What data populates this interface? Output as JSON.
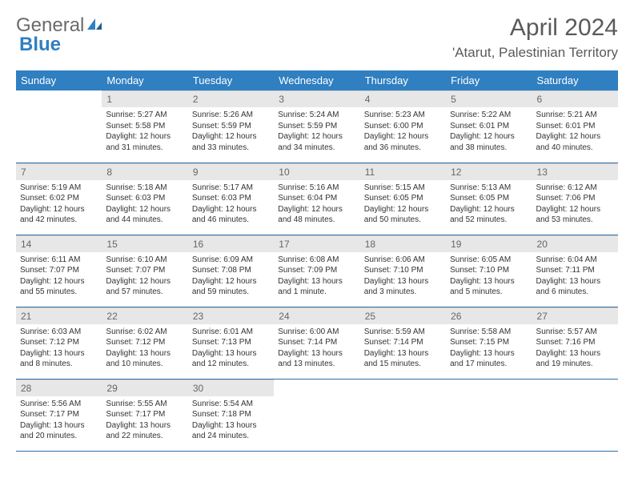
{
  "brand": {
    "part1": "General",
    "part2": "Blue"
  },
  "title": "April 2024",
  "location": "'Atarut, Palestinian Territory",
  "colors": {
    "header_bg": "#2f7fc1",
    "header_text": "#ffffff",
    "daynum_bg": "#e7e7e7",
    "border": "#2f6fa8"
  },
  "weekdays": [
    "Sunday",
    "Monday",
    "Tuesday",
    "Wednesday",
    "Thursday",
    "Friday",
    "Saturday"
  ],
  "weeks": [
    [
      {
        "n": "",
        "sr": "",
        "ss": "",
        "dl": ""
      },
      {
        "n": "1",
        "sr": "Sunrise: 5:27 AM",
        "ss": "Sunset: 5:58 PM",
        "dl": "Daylight: 12 hours and 31 minutes."
      },
      {
        "n": "2",
        "sr": "Sunrise: 5:26 AM",
        "ss": "Sunset: 5:59 PM",
        "dl": "Daylight: 12 hours and 33 minutes."
      },
      {
        "n": "3",
        "sr": "Sunrise: 5:24 AM",
        "ss": "Sunset: 5:59 PM",
        "dl": "Daylight: 12 hours and 34 minutes."
      },
      {
        "n": "4",
        "sr": "Sunrise: 5:23 AM",
        "ss": "Sunset: 6:00 PM",
        "dl": "Daylight: 12 hours and 36 minutes."
      },
      {
        "n": "5",
        "sr": "Sunrise: 5:22 AM",
        "ss": "Sunset: 6:01 PM",
        "dl": "Daylight: 12 hours and 38 minutes."
      },
      {
        "n": "6",
        "sr": "Sunrise: 5:21 AM",
        "ss": "Sunset: 6:01 PM",
        "dl": "Daylight: 12 hours and 40 minutes."
      }
    ],
    [
      {
        "n": "7",
        "sr": "Sunrise: 5:19 AM",
        "ss": "Sunset: 6:02 PM",
        "dl": "Daylight: 12 hours and 42 minutes."
      },
      {
        "n": "8",
        "sr": "Sunrise: 5:18 AM",
        "ss": "Sunset: 6:03 PM",
        "dl": "Daylight: 12 hours and 44 minutes."
      },
      {
        "n": "9",
        "sr": "Sunrise: 5:17 AM",
        "ss": "Sunset: 6:03 PM",
        "dl": "Daylight: 12 hours and 46 minutes."
      },
      {
        "n": "10",
        "sr": "Sunrise: 5:16 AM",
        "ss": "Sunset: 6:04 PM",
        "dl": "Daylight: 12 hours and 48 minutes."
      },
      {
        "n": "11",
        "sr": "Sunrise: 5:15 AM",
        "ss": "Sunset: 6:05 PM",
        "dl": "Daylight: 12 hours and 50 minutes."
      },
      {
        "n": "12",
        "sr": "Sunrise: 5:13 AM",
        "ss": "Sunset: 6:05 PM",
        "dl": "Daylight: 12 hours and 52 minutes."
      },
      {
        "n": "13",
        "sr": "Sunrise: 6:12 AM",
        "ss": "Sunset: 7:06 PM",
        "dl": "Daylight: 12 hours and 53 minutes."
      }
    ],
    [
      {
        "n": "14",
        "sr": "Sunrise: 6:11 AM",
        "ss": "Sunset: 7:07 PM",
        "dl": "Daylight: 12 hours and 55 minutes."
      },
      {
        "n": "15",
        "sr": "Sunrise: 6:10 AM",
        "ss": "Sunset: 7:07 PM",
        "dl": "Daylight: 12 hours and 57 minutes."
      },
      {
        "n": "16",
        "sr": "Sunrise: 6:09 AM",
        "ss": "Sunset: 7:08 PM",
        "dl": "Daylight: 12 hours and 59 minutes."
      },
      {
        "n": "17",
        "sr": "Sunrise: 6:08 AM",
        "ss": "Sunset: 7:09 PM",
        "dl": "Daylight: 13 hours and 1 minute."
      },
      {
        "n": "18",
        "sr": "Sunrise: 6:06 AM",
        "ss": "Sunset: 7:10 PM",
        "dl": "Daylight: 13 hours and 3 minutes."
      },
      {
        "n": "19",
        "sr": "Sunrise: 6:05 AM",
        "ss": "Sunset: 7:10 PM",
        "dl": "Daylight: 13 hours and 5 minutes."
      },
      {
        "n": "20",
        "sr": "Sunrise: 6:04 AM",
        "ss": "Sunset: 7:11 PM",
        "dl": "Daylight: 13 hours and 6 minutes."
      }
    ],
    [
      {
        "n": "21",
        "sr": "Sunrise: 6:03 AM",
        "ss": "Sunset: 7:12 PM",
        "dl": "Daylight: 13 hours and 8 minutes."
      },
      {
        "n": "22",
        "sr": "Sunrise: 6:02 AM",
        "ss": "Sunset: 7:12 PM",
        "dl": "Daylight: 13 hours and 10 minutes."
      },
      {
        "n": "23",
        "sr": "Sunrise: 6:01 AM",
        "ss": "Sunset: 7:13 PM",
        "dl": "Daylight: 13 hours and 12 minutes."
      },
      {
        "n": "24",
        "sr": "Sunrise: 6:00 AM",
        "ss": "Sunset: 7:14 PM",
        "dl": "Daylight: 13 hours and 13 minutes."
      },
      {
        "n": "25",
        "sr": "Sunrise: 5:59 AM",
        "ss": "Sunset: 7:14 PM",
        "dl": "Daylight: 13 hours and 15 minutes."
      },
      {
        "n": "26",
        "sr": "Sunrise: 5:58 AM",
        "ss": "Sunset: 7:15 PM",
        "dl": "Daylight: 13 hours and 17 minutes."
      },
      {
        "n": "27",
        "sr": "Sunrise: 5:57 AM",
        "ss": "Sunset: 7:16 PM",
        "dl": "Daylight: 13 hours and 19 minutes."
      }
    ],
    [
      {
        "n": "28",
        "sr": "Sunrise: 5:56 AM",
        "ss": "Sunset: 7:17 PM",
        "dl": "Daylight: 13 hours and 20 minutes."
      },
      {
        "n": "29",
        "sr": "Sunrise: 5:55 AM",
        "ss": "Sunset: 7:17 PM",
        "dl": "Daylight: 13 hours and 22 minutes."
      },
      {
        "n": "30",
        "sr": "Sunrise: 5:54 AM",
        "ss": "Sunset: 7:18 PM",
        "dl": "Daylight: 13 hours and 24 minutes."
      },
      {
        "n": "",
        "sr": "",
        "ss": "",
        "dl": ""
      },
      {
        "n": "",
        "sr": "",
        "ss": "",
        "dl": ""
      },
      {
        "n": "",
        "sr": "",
        "ss": "",
        "dl": ""
      },
      {
        "n": "",
        "sr": "",
        "ss": "",
        "dl": ""
      }
    ]
  ]
}
